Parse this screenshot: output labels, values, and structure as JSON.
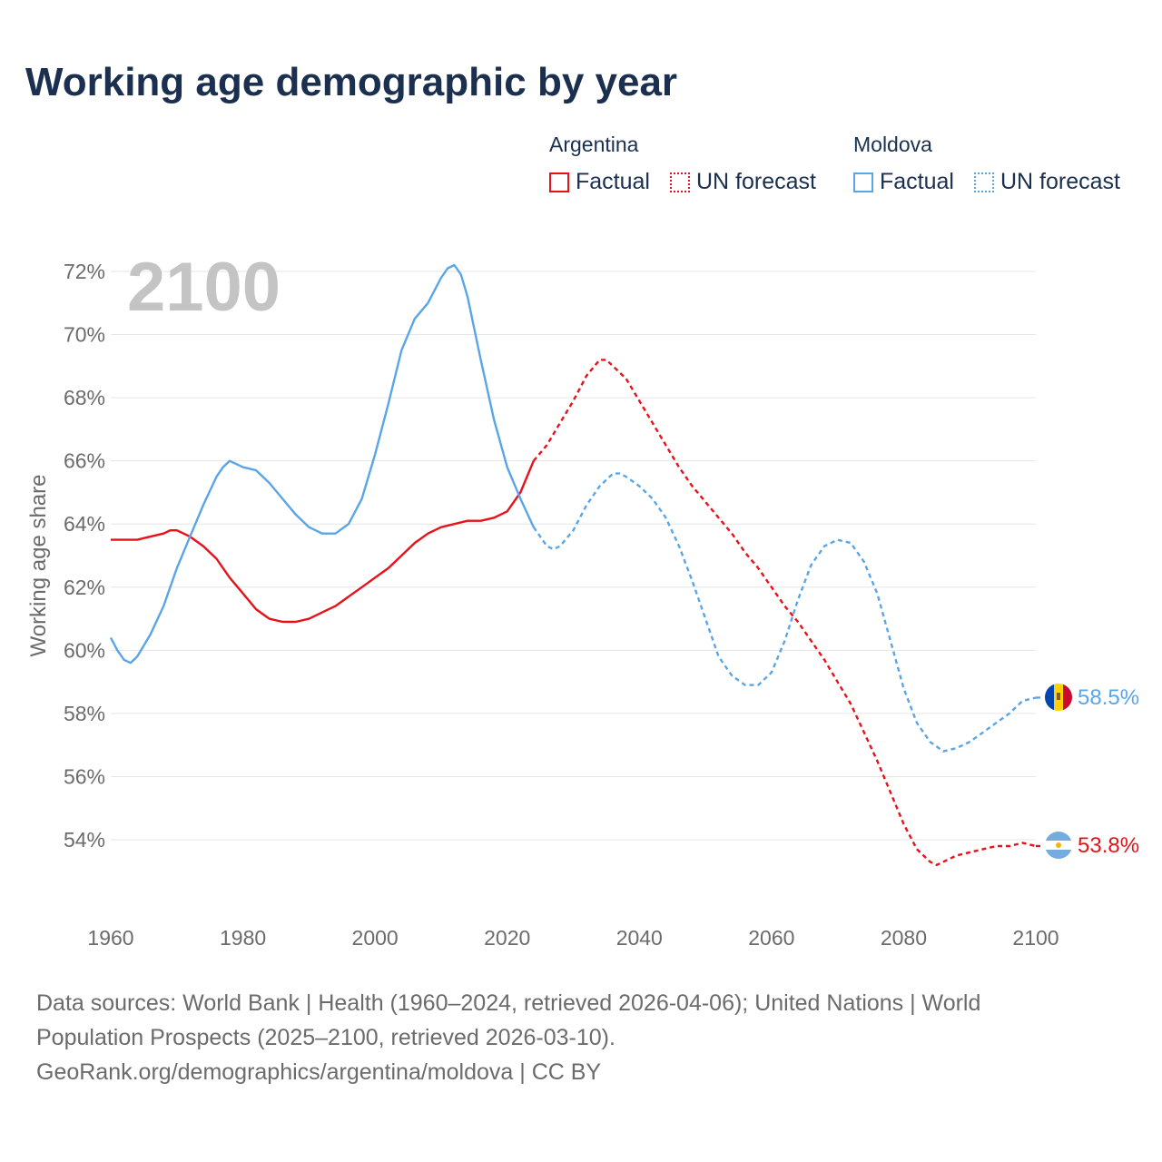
{
  "title": "Working age demographic by year",
  "legend": {
    "groups": [
      {
        "name": "Argentina",
        "items": [
          "Factual",
          "UN forecast"
        ]
      },
      {
        "name": "Moldova",
        "items": [
          "Factual",
          "UN forecast"
        ]
      }
    ]
  },
  "colors": {
    "argentina": "#e8111a",
    "moldova": "#5aa5e8",
    "grid": "#e6e6e6",
    "year_label": "#c4c4c4",
    "axis_text": "#6b6b6b"
  },
  "chart_data": {
    "type": "line",
    "year_label": "2100",
    "ylabel": "Working age share",
    "xlim": [
      1960,
      2100
    ],
    "ylim": [
      52,
      72.7
    ],
    "x_ticks": [
      1960,
      1980,
      2000,
      2020,
      2040,
      2060,
      2080,
      2100
    ],
    "y_ticks": [
      54,
      56,
      58,
      60,
      62,
      64,
      66,
      68,
      70,
      72
    ],
    "y_tick_labels": [
      "54%",
      "56%",
      "58%",
      "60%",
      "62%",
      "64%",
      "66%",
      "68%",
      "70%",
      "72%"
    ],
    "forecast_start": 2024,
    "series": [
      {
        "name": "Argentina",
        "flag": "argentina-flag-icon",
        "end_label": "53.8%",
        "points": [
          [
            1960,
            63.5
          ],
          [
            1964,
            63.5
          ],
          [
            1966,
            63.6
          ],
          [
            1968,
            63.7
          ],
          [
            1969,
            63.8
          ],
          [
            1970,
            63.8
          ],
          [
            1972,
            63.6
          ],
          [
            1974,
            63.3
          ],
          [
            1976,
            62.9
          ],
          [
            1978,
            62.3
          ],
          [
            1980,
            61.8
          ],
          [
            1982,
            61.3
          ],
          [
            1984,
            61.0
          ],
          [
            1986,
            60.9
          ],
          [
            1988,
            60.9
          ],
          [
            1990,
            61.0
          ],
          [
            1992,
            61.2
          ],
          [
            1994,
            61.4
          ],
          [
            1996,
            61.7
          ],
          [
            1998,
            62.0
          ],
          [
            2000,
            62.3
          ],
          [
            2002,
            62.6
          ],
          [
            2004,
            63.0
          ],
          [
            2006,
            63.4
          ],
          [
            2008,
            63.7
          ],
          [
            2010,
            63.9
          ],
          [
            2012,
            64.0
          ],
          [
            2014,
            64.1
          ],
          [
            2016,
            64.1
          ],
          [
            2018,
            64.2
          ],
          [
            2020,
            64.4
          ],
          [
            2022,
            65.0
          ],
          [
            2024,
            66.0
          ],
          [
            2026,
            66.5
          ],
          [
            2028,
            67.2
          ],
          [
            2030,
            67.9
          ],
          [
            2032,
            68.7
          ],
          [
            2034,
            69.2
          ],
          [
            2035,
            69.2
          ],
          [
            2036,
            69.0
          ],
          [
            2038,
            68.6
          ],
          [
            2040,
            67.9
          ],
          [
            2042,
            67.2
          ],
          [
            2044,
            66.5
          ],
          [
            2046,
            65.8
          ],
          [
            2048,
            65.2
          ],
          [
            2050,
            64.7
          ],
          [
            2052,
            64.2
          ],
          [
            2054,
            63.7
          ],
          [
            2056,
            63.1
          ],
          [
            2058,
            62.6
          ],
          [
            2060,
            62.0
          ],
          [
            2062,
            61.4
          ],
          [
            2064,
            60.9
          ],
          [
            2066,
            60.3
          ],
          [
            2068,
            59.7
          ],
          [
            2070,
            59.0
          ],
          [
            2072,
            58.3
          ],
          [
            2074,
            57.4
          ],
          [
            2076,
            56.5
          ],
          [
            2078,
            55.5
          ],
          [
            2080,
            54.5
          ],
          [
            2082,
            53.7
          ],
          [
            2084,
            53.3
          ],
          [
            2085,
            53.2
          ],
          [
            2086,
            53.3
          ],
          [
            2088,
            53.5
          ],
          [
            2090,
            53.6
          ],
          [
            2092,
            53.7
          ],
          [
            2094,
            53.8
          ],
          [
            2096,
            53.8
          ],
          [
            2098,
            53.9
          ],
          [
            2100,
            53.8
          ]
        ]
      },
      {
        "name": "Moldova",
        "flag": "moldova-flag-icon",
        "end_label": "58.5%",
        "points": [
          [
            1960,
            60.4
          ],
          [
            1961,
            60.0
          ],
          [
            1962,
            59.7
          ],
          [
            1963,
            59.6
          ],
          [
            1964,
            59.8
          ],
          [
            1966,
            60.5
          ],
          [
            1968,
            61.4
          ],
          [
            1970,
            62.6
          ],
          [
            1972,
            63.6
          ],
          [
            1974,
            64.6
          ],
          [
            1976,
            65.5
          ],
          [
            1977,
            65.8
          ],
          [
            1978,
            66.0
          ],
          [
            1980,
            65.8
          ],
          [
            1982,
            65.7
          ],
          [
            1984,
            65.3
          ],
          [
            1986,
            64.8
          ],
          [
            1988,
            64.3
          ],
          [
            1990,
            63.9
          ],
          [
            1992,
            63.7
          ],
          [
            1994,
            63.7
          ],
          [
            1996,
            64.0
          ],
          [
            1998,
            64.8
          ],
          [
            2000,
            66.2
          ],
          [
            2002,
            67.8
          ],
          [
            2004,
            69.5
          ],
          [
            2006,
            70.5
          ],
          [
            2008,
            71.0
          ],
          [
            2010,
            71.8
          ],
          [
            2011,
            72.1
          ],
          [
            2012,
            72.2
          ],
          [
            2013,
            71.9
          ],
          [
            2014,
            71.2
          ],
          [
            2016,
            69.2
          ],
          [
            2018,
            67.3
          ],
          [
            2020,
            65.8
          ],
          [
            2022,
            64.8
          ],
          [
            2024,
            63.9
          ],
          [
            2025,
            63.6
          ],
          [
            2026,
            63.3
          ],
          [
            2027,
            63.2
          ],
          [
            2028,
            63.3
          ],
          [
            2030,
            63.8
          ],
          [
            2032,
            64.6
          ],
          [
            2034,
            65.2
          ],
          [
            2036,
            65.6
          ],
          [
            2037,
            65.6
          ],
          [
            2038,
            65.5
          ],
          [
            2040,
            65.2
          ],
          [
            2042,
            64.8
          ],
          [
            2044,
            64.2
          ],
          [
            2046,
            63.3
          ],
          [
            2048,
            62.2
          ],
          [
            2050,
            61.0
          ],
          [
            2052,
            59.8
          ],
          [
            2054,
            59.2
          ],
          [
            2056,
            58.9
          ],
          [
            2058,
            58.9
          ],
          [
            2060,
            59.3
          ],
          [
            2062,
            60.3
          ],
          [
            2064,
            61.6
          ],
          [
            2066,
            62.7
          ],
          [
            2068,
            63.3
          ],
          [
            2070,
            63.5
          ],
          [
            2072,
            63.4
          ],
          [
            2074,
            62.8
          ],
          [
            2076,
            61.8
          ],
          [
            2078,
            60.3
          ],
          [
            2080,
            58.8
          ],
          [
            2082,
            57.7
          ],
          [
            2084,
            57.1
          ],
          [
            2086,
            56.8
          ],
          [
            2088,
            56.9
          ],
          [
            2090,
            57.1
          ],
          [
            2092,
            57.4
          ],
          [
            2094,
            57.7
          ],
          [
            2096,
            58.0
          ],
          [
            2098,
            58.4
          ],
          [
            2100,
            58.5
          ]
        ]
      }
    ]
  },
  "footer": {
    "line1": "Data sources: World Bank | Health (1960–2024, retrieved 2026-04-06); United Nations | World",
    "line2": "Population Prospects (2025–2100, retrieved 2026-03-10).",
    "line3": "GeoRank.org/demographics/argentina/moldova | CC BY"
  }
}
